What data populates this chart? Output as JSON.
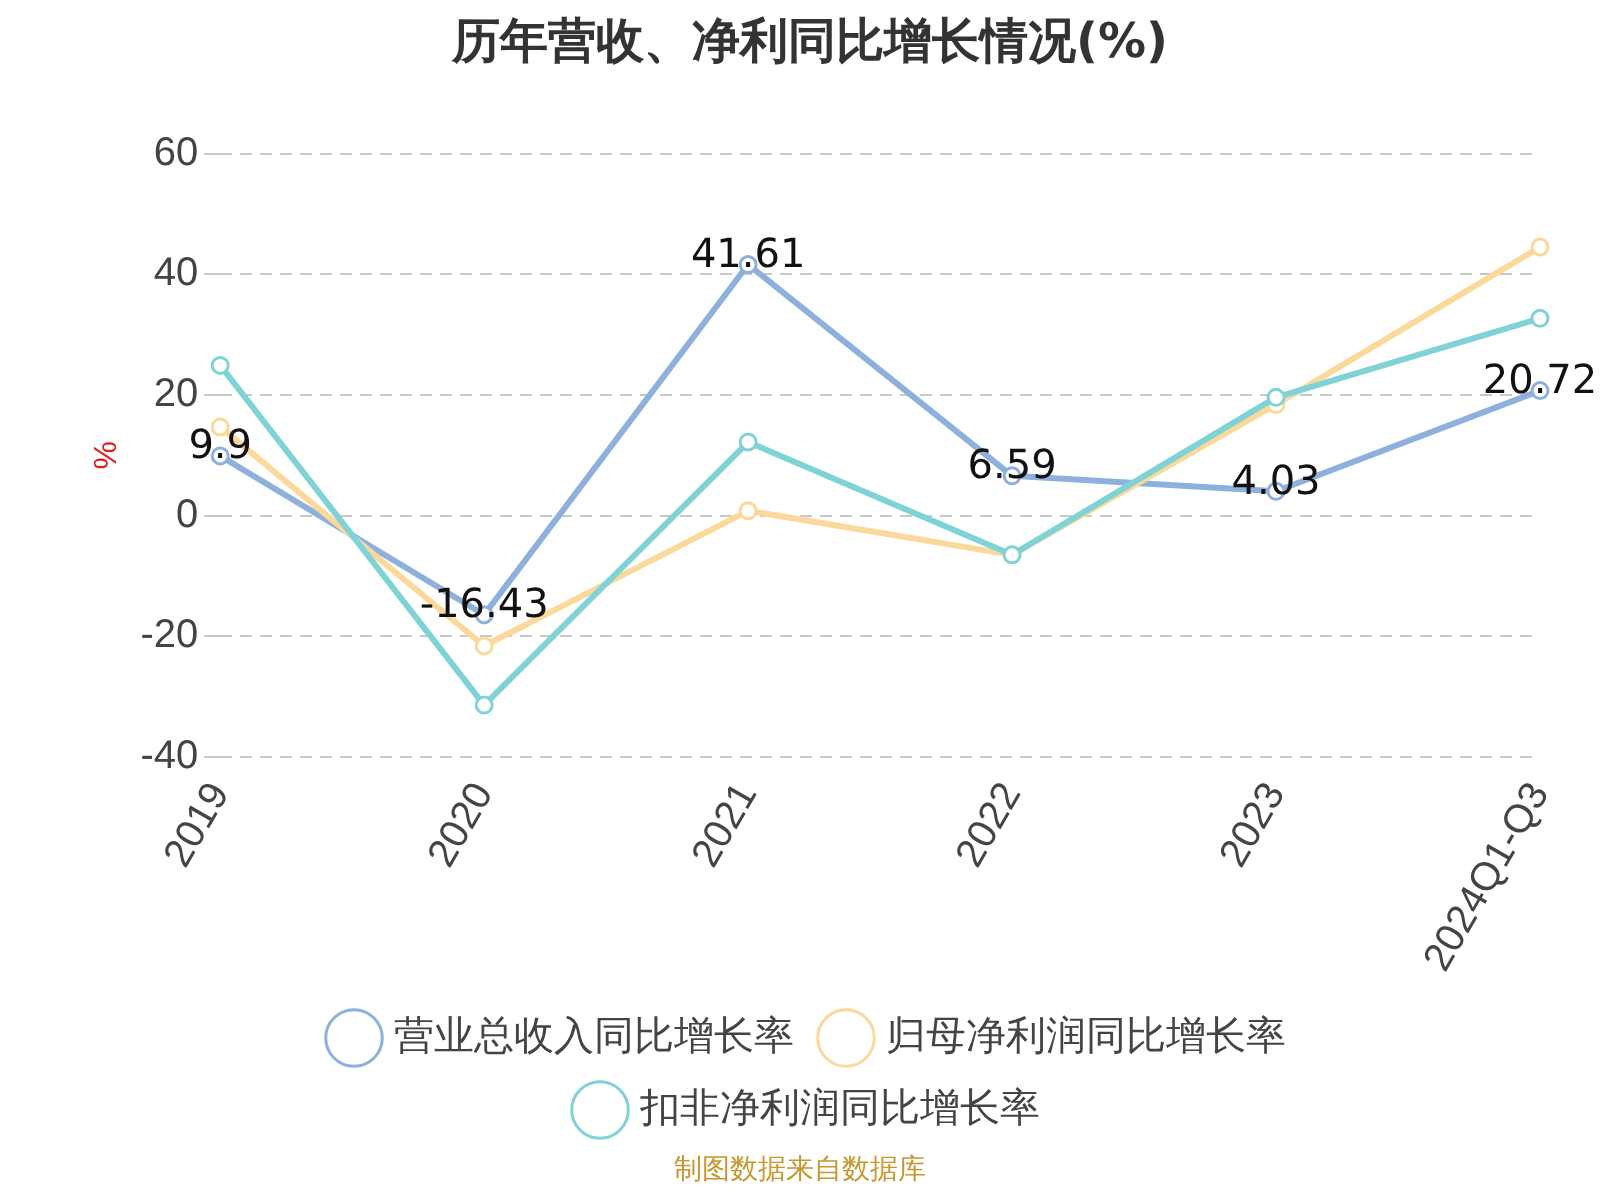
{
  "chart_data": {
    "type": "line",
    "title": "历年营收、净利同比增长情况(%)",
    "ylabel": "%",
    "categories": [
      "2019",
      "2020",
      "2021",
      "2022",
      "2023",
      "2024Q1-Q3"
    ],
    "series": [
      {
        "name": "营业总收入同比增长率",
        "color": "#8eb0dc",
        "values": [
          9.9,
          -16.43,
          41.61,
          6.59,
          4.03,
          20.72
        ],
        "value_labels": [
          "9.9",
          "-16.43",
          "41.61",
          "6.59",
          "4.03",
          "20.72"
        ]
      },
      {
        "name": "归母净利润同比增长率",
        "color": "#fbd99a",
        "values": [
          14.7,
          -21.6,
          0.8,
          -6.5,
          18.4,
          44.5
        ]
      },
      {
        "name": "扣非净利润同比增长率",
        "color": "#7fd3d6",
        "values": [
          24.9,
          -31.4,
          12.2,
          -6.5,
          19.6,
          32.7
        ]
      }
    ],
    "ylim": [
      -40,
      60
    ],
    "yticks": [
      -40,
      -20,
      0,
      20,
      40,
      60
    ],
    "grid": "y",
    "legend": "bottom",
    "marker": "circle",
    "line_style": "solid",
    "annotations": [
      "制图数据来自数据库"
    ]
  }
}
